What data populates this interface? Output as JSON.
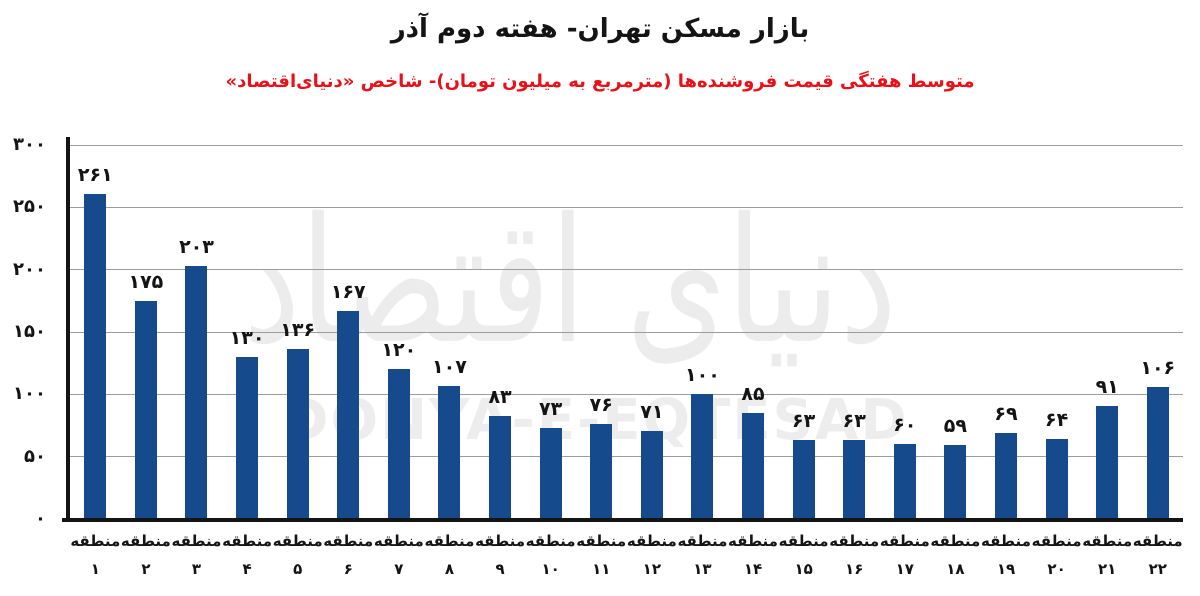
{
  "header": {
    "title": "بازار مسکن تهران- هفته دوم آذر",
    "subtitle": "متوسط هفتگی قیمت فروشنده‌ها (مترمربع به میلیون تومان)- شاخص «دنیای‌اقتصاد»"
  },
  "watermark": {
    "fa": "دنیای اقتصاد",
    "en": "DONYA-E-EQTESAD"
  },
  "colors": {
    "bar": "#154a8c",
    "subtitle_red": "#e8111a",
    "gridline": "#9c9c9c",
    "axis": "#141414",
    "watermark": "#ececec"
  },
  "chart_data": {
    "type": "bar",
    "title": "بازار مسکن تهران- هفته دوم آذر",
    "subtitle": "متوسط هفتگی قیمت فروشنده‌ها (مترمربع به میلیون تومان)- شاخص «دنیای‌اقتصاد»",
    "region_word_fa": "منطقه",
    "categories": [
      "منطقه ۱",
      "منطقه ۲",
      "منطقه ۳",
      "منطقه ۴",
      "منطقه ۵",
      "منطقه ۶",
      "منطقه ۷",
      "منطقه ۸",
      "منطقه ۹",
      "منطقه ۱۰",
      "منطقه ۱۱",
      "منطقه ۱۲",
      "منطقه ۱۳",
      "منطقه ۱۴",
      "منطقه ۱۵",
      "منطقه ۱۶",
      "منطقه ۱۷",
      "منطقه ۱۸",
      "منطقه ۱۹",
      "منطقه ۲۰",
      "منطقه ۲۱",
      "منطقه ۲۲"
    ],
    "category_numbers_fa": [
      "۱",
      "۲",
      "۳",
      "۴",
      "۵",
      "۶",
      "۷",
      "۸",
      "۹",
      "۱۰",
      "۱۱",
      "۱۲",
      "۱۳",
      "۱۴",
      "۱۵",
      "۱۶",
      "۱۷",
      "۱۸",
      "۱۹",
      "۲۰",
      "۲۱",
      "۲۲"
    ],
    "values": [
      261,
      175,
      203,
      130,
      136,
      167,
      120,
      107,
      83,
      73,
      76,
      71,
      100,
      85,
      63,
      63,
      60,
      59,
      69,
      64,
      91,
      106
    ],
    "value_labels_fa": [
      "۲۶۱",
      "۱۷۵",
      "۲۰۳",
      "۱۳۰",
      "۱۳۶",
      "۱۶۷",
      "۱۲۰",
      "۱۰۷",
      "۸۳",
      "۷۳",
      "۷۶",
      "۷۱",
      "۱۰۰",
      "۸۵",
      "۶۳",
      "۶۳",
      "۶۰",
      "۵۹",
      "۶۹",
      "۶۴",
      "۹۱",
      "۱۰۶"
    ],
    "xlabel": "",
    "ylabel": "",
    "ylim": [
      0,
      300
    ],
    "y_ticks": [
      0,
      50,
      100,
      150,
      200,
      250,
      300
    ],
    "y_tick_labels_fa": [
      "۰",
      "۵۰",
      "۱۰۰",
      "۱۵۰",
      "۲۰۰",
      "۲۵۰",
      "۳۰۰"
    ],
    "grid": true,
    "legend": "none",
    "bar_color": "#154a8c"
  }
}
